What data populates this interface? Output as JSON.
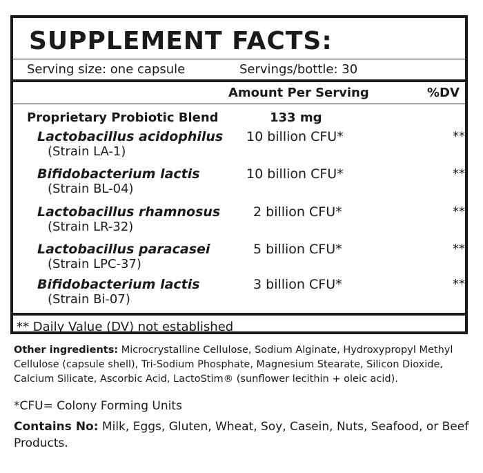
{
  "title": "SUPPLEMENT FACTS:",
  "serving_size": "Serving size: one capsule",
  "servings_per_bottle": "Servings/bottle: 30",
  "columns": {
    "amount": "Amount Per Serving",
    "dv": "%DV"
  },
  "blend": {
    "name": "Proprietary Probiotic Blend",
    "amount": "133 mg"
  },
  "ingredients": [
    {
      "name": "Lactobacillus acidophilus",
      "strain": "(Strain LA-1)",
      "amount": "10 billion CFU*",
      "dv": "**"
    },
    {
      "name": "Bifidobacterium lactis",
      "strain": "(Strain BL-04)",
      "amount": "10 billion CFU*",
      "dv": "**"
    },
    {
      "name": "Lactobacillus rhamnosus",
      "strain": "(Strain LR-32)",
      "amount": "2 billion CFU*",
      "dv": "**"
    },
    {
      "name": "Lactobacillus paracasei",
      "strain": "(Strain LPC-37)",
      "amount": "5 billion CFU*",
      "dv": "**"
    },
    {
      "name": "Bifidobacterium lactis",
      "strain": "(Strain Bi-07)",
      "amount": "3 billion CFU*",
      "dv": "**"
    }
  ],
  "footnote_dv": "** Daily Value (DV) not established",
  "other_ingredients": {
    "label": "Other ingredients:",
    "text": " Microcrystalline Cellulose, Sodium Alginate, Hydroxypropyl Methyl Cellulose (capsule shell), Tri-Sodium Phosphate, Magnesium Stearate, Silicon Dioxide, Calcium Silicate, Ascorbic Acid, LactoStim® (sunflower lecithin + oleic acid)."
  },
  "cfu_note": "*CFU= Colony Forming Units",
  "contains_no": {
    "label": "Contains No:",
    "text": " Milk, Eggs, Gluten, Wheat, Soy, Casein, Nuts, Seafood, or Beef Products."
  }
}
